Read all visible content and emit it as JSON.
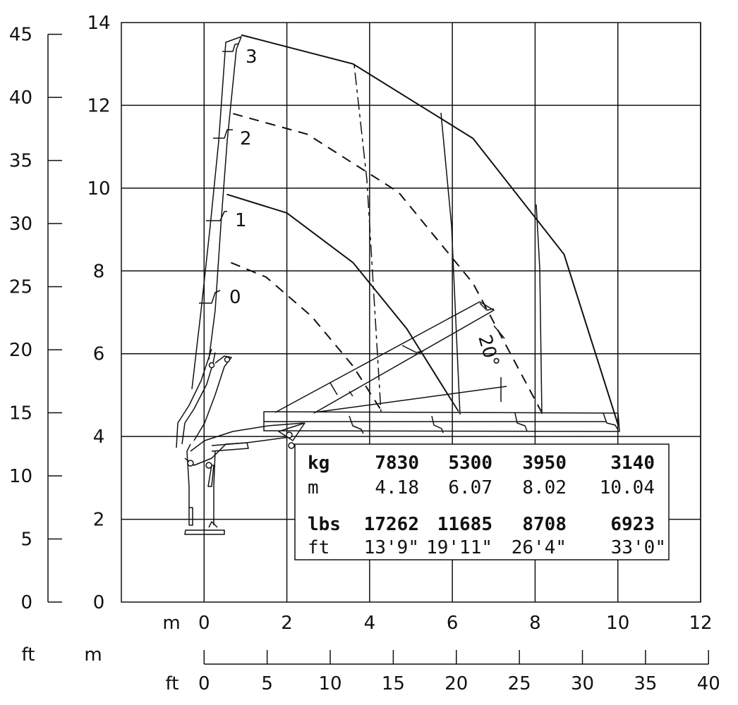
{
  "chart_data": {
    "type": "line",
    "title": "",
    "x_axis": {
      "unit_label": "m",
      "ticks": [
        "0",
        "2",
        "4",
        "6",
        "8",
        "10",
        "12"
      ],
      "range": [
        -2,
        12
      ]
    },
    "x_axis_ft": {
      "unit_label_left": "ft",
      "unit_label_mid": "m",
      "label": "ft",
      "ticks": [
        "0",
        "5",
        "10",
        "15",
        "20",
        "25",
        "30",
        "35",
        "40"
      ],
      "range": [
        0,
        40
      ]
    },
    "y_axis": {
      "ticks": [
        "0",
        "2",
        "4",
        "6",
        "8",
        "10",
        "12",
        "14"
      ],
      "range": [
        0,
        14
      ]
    },
    "y_axis_ft": {
      "ticks": [
        "0",
        "5",
        "10",
        "15",
        "20",
        "25",
        "30",
        "35",
        "40",
        "45"
      ],
      "range": [
        0,
        45
      ]
    },
    "grid": true,
    "boom_extension_labels": [
      "0",
      "1",
      "2",
      "3"
    ],
    "angle_label": "20°",
    "series": [
      {
        "x": [
          0.65,
          1.5,
          2.6,
          3.6,
          4.3
        ],
        "y": [
          8.2,
          7.85,
          6.9,
          5.7,
          4.6
        ]
      },
      {
        "x": [
          0.55,
          2.0,
          3.6,
          4.9,
          6.15
        ],
        "y": [
          9.85,
          9.4,
          8.2,
          6.6,
          4.6
        ]
      },
      {
        "x": [
          0.7,
          2.5,
          4.7,
          6.5,
          8.15
        ],
        "y": [
          11.8,
          11.3,
          9.9,
          7.7,
          4.6
        ]
      },
      {
        "x": [
          0.9,
          3.6,
          6.5,
          8.7,
          10.0
        ],
        "y": [
          13.7,
          13.0,
          11.2,
          8.4,
          4.3
        ]
      }
    ],
    "capacity_table": {
      "rows": [
        {
          "unit": "kg",
          "values": [
            "7830",
            "5300",
            "3950",
            "3140"
          ],
          "bold": true
        },
        {
          "unit": "m",
          "values": [
            "4.18",
            "6.07",
            "8.02",
            "10.04"
          ],
          "bold": false
        },
        {
          "unit": "lbs",
          "values": [
            "17262",
            "11685",
            "8708",
            "6923"
          ],
          "bold": true
        },
        {
          "unit": "ft",
          "values": [
            "13'9\"",
            "19'11\"",
            "26'4\"",
            "33'0\""
          ],
          "bold": false
        }
      ]
    }
  }
}
